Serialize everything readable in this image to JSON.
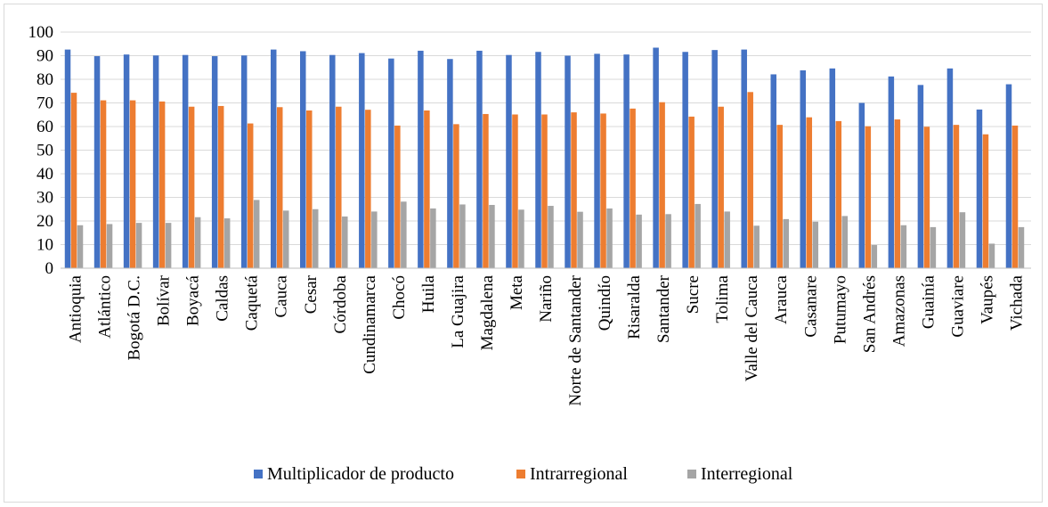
{
  "chart_data": {
    "type": "bar",
    "title": "",
    "xlabel": "",
    "ylabel": "",
    "ylim": [
      0,
      100
    ],
    "yticks": [
      0,
      10,
      20,
      30,
      40,
      50,
      60,
      70,
      80,
      90,
      100
    ],
    "grid": true,
    "legend": "bottom",
    "categories": [
      "Antioquia",
      "Atlántico",
      "Bogotá D.C.",
      "Bolívar",
      "Boyacá",
      "Caldas",
      "Caquetá",
      "Cauca",
      "Cesar",
      "Córdoba",
      "Cundinamarca",
      "Chocó",
      "Huila",
      "La Guajira",
      "Magdalena",
      "Meta",
      "Nariño",
      "Norte de Santander",
      "Quindío",
      "Risaralda",
      "Santander",
      "Sucre",
      "Tolima",
      "Valle del Cauca",
      "Arauca",
      "Casanare",
      "Putumayo",
      "San Andrés",
      "Amazonas",
      "Guainía",
      "Guaviare",
      "Vaupés",
      "Vichada"
    ],
    "series": [
      {
        "name": "Multiplicador de producto",
        "color": "#4472C4",
        "values": [
          92.6,
          89.8,
          90.5,
          90.1,
          90.3,
          89.8,
          90.1,
          92.6,
          91.9,
          90.3,
          91.1,
          88.8,
          92.1,
          88.6,
          92.1,
          90.3,
          91.6,
          90.0,
          90.8,
          90.5,
          93.4,
          91.6,
          92.4,
          92.6,
          82.1,
          83.8,
          84.6,
          70.0,
          81.2,
          77.6,
          84.6,
          67.2,
          77.9
        ]
      },
      {
        "name": "Intrarregional",
        "color": "#ED7D31",
        "values": [
          74.3,
          71.1,
          71.1,
          70.6,
          68.4,
          68.7,
          61.3,
          68.2,
          66.8,
          68.4,
          67.1,
          60.4,
          66.8,
          61.0,
          65.3,
          65.1,
          65.1,
          66.0,
          65.5,
          67.6,
          70.3,
          64.2,
          68.4,
          74.6,
          60.7,
          63.9,
          62.3,
          60.1,
          63.0,
          59.9,
          60.7,
          56.7,
          60.4
        ]
      },
      {
        "name": "Interregional",
        "color": "#A5A5A5",
        "values": [
          18.2,
          18.7,
          19.2,
          19.2,
          21.6,
          21.1,
          28.9,
          24.4,
          25.0,
          21.9,
          24.0,
          28.2,
          25.3,
          27.0,
          26.8,
          24.8,
          26.4,
          23.9,
          25.3,
          22.7,
          22.9,
          27.2,
          24.0,
          18.0,
          20.8,
          19.7,
          22.1,
          9.8,
          18.2,
          17.4,
          23.7,
          10.4,
          17.4
        ]
      }
    ]
  }
}
